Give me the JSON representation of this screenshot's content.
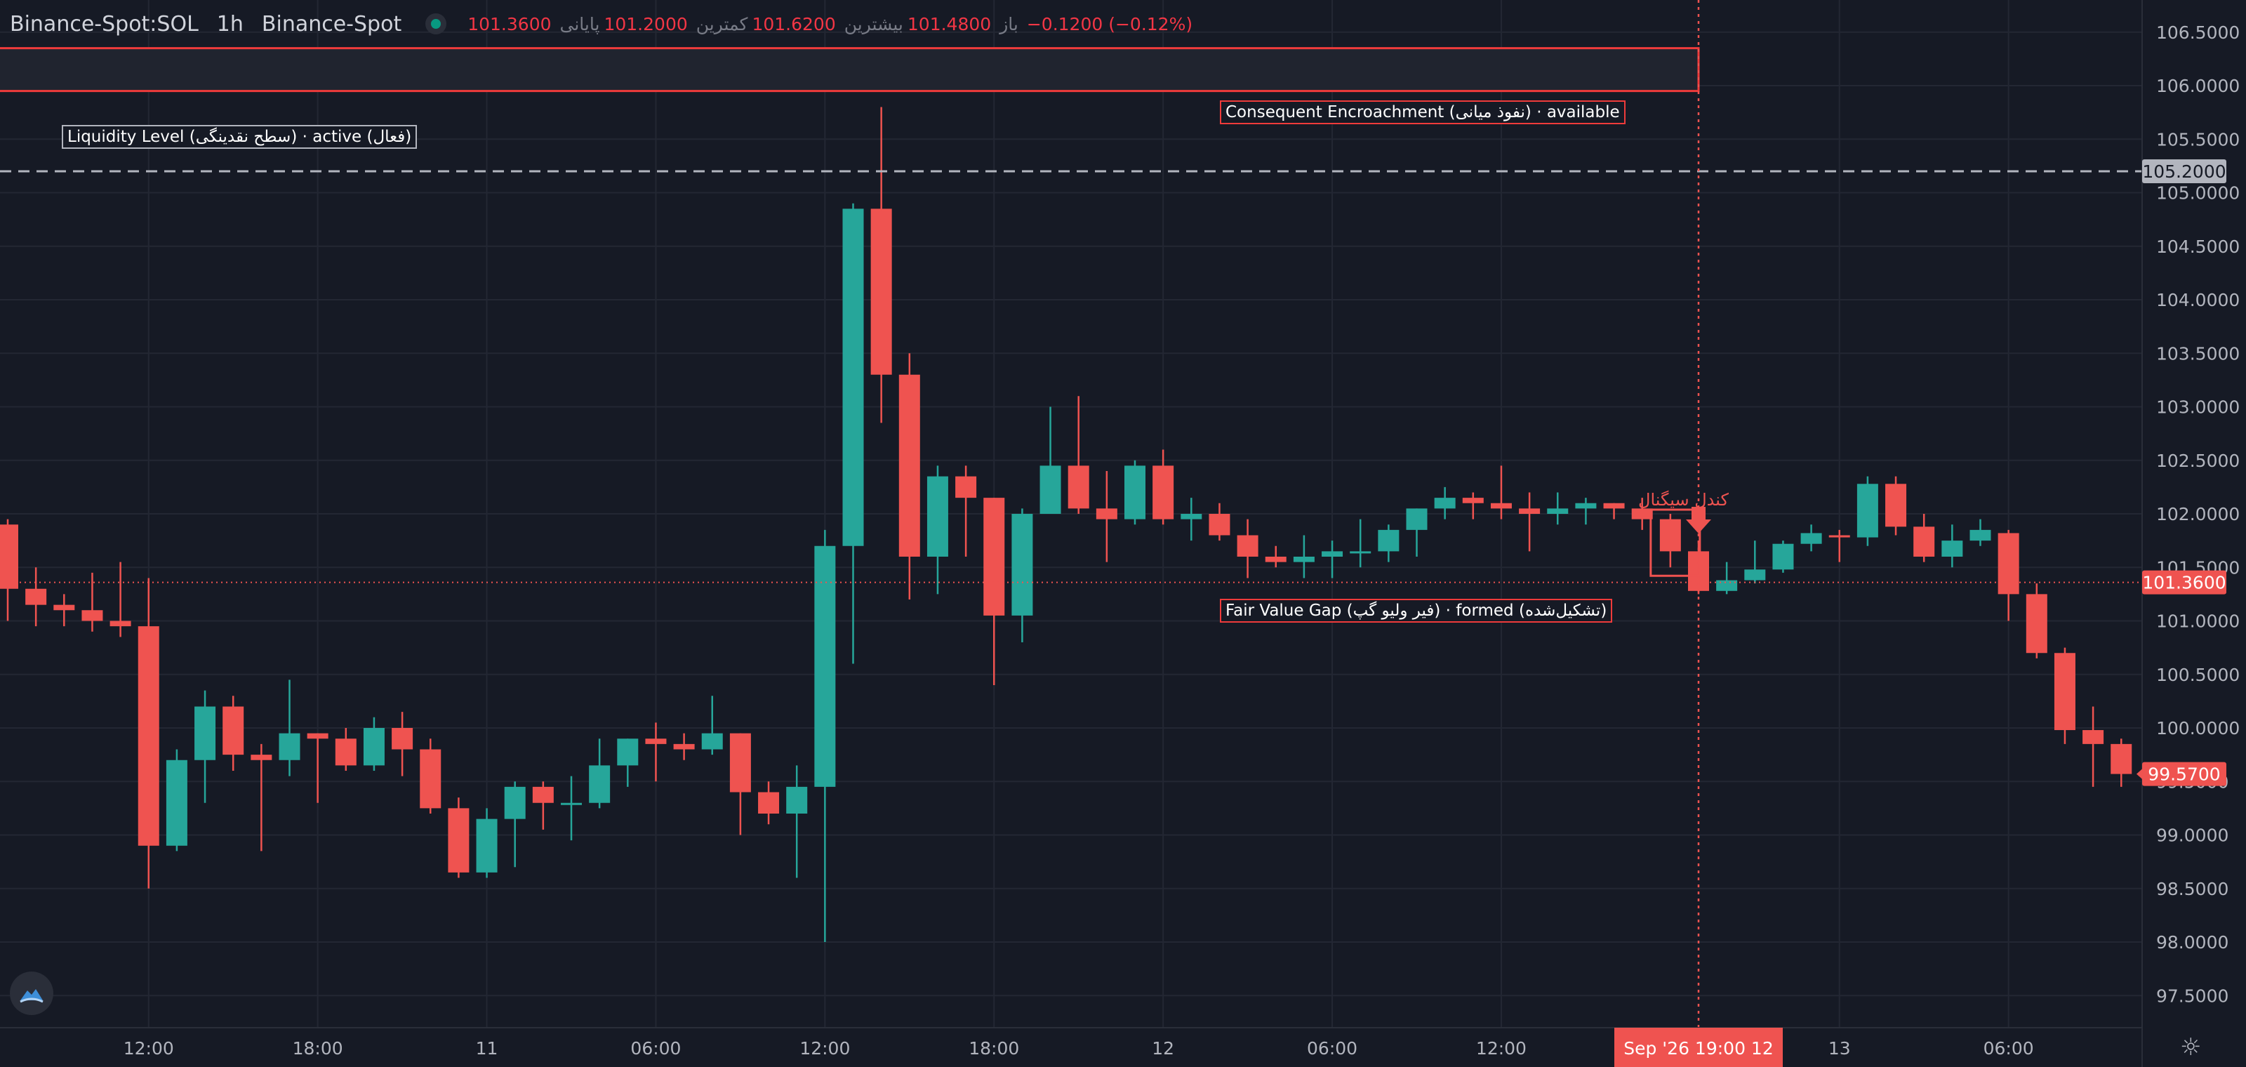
{
  "header": {
    "symbol": "Binance-Spot:SOL",
    "timeframe": "1h",
    "exchange": "Binance-Spot",
    "open_label": "باز",
    "open_value": "101.4800",
    "high_label": "بیشترین",
    "high_value": "101.6200",
    "low_label": "کمترین",
    "low_value": "101.2000",
    "close_label": "پایانی",
    "close_value": "101.3600",
    "change_text": "−0.1200 (−0.12%)"
  },
  "annotations": {
    "liquidity_label": "Liquidity Level (سطح نقدینگی) · active (فعال)",
    "ce_label": "Consequent Encroachment (نفوذ میانی) · available",
    "fvg_label": "Fair Value Gap (فیر ولیو گپ) · formed (تشکیل‌شده)",
    "signal_label": "کندل سیگنال"
  },
  "colors": {
    "background": "#161a25",
    "up": "#26a69a",
    "down": "#ef5350",
    "grid": "#232733",
    "text": "#b2b5be"
  },
  "icons": {
    "logo": "cloud-logo-icon",
    "settings": "gear-icon",
    "status": "live-dot-icon",
    "signal": "down-arrow-icon"
  },
  "chart_data": {
    "type": "candlestick",
    "y_axis_side": "right",
    "ylim": [
      97.2,
      106.8
    ],
    "y_ticks": [
      "97.5000",
      "98.0000",
      "98.5000",
      "99.0000",
      "99.5000",
      "100.0000",
      "100.5000",
      "101.0000",
      "101.5000",
      "102.0000",
      "102.5000",
      "103.0000",
      "103.5000",
      "104.0000",
      "104.5000",
      "105.0000",
      "105.5000",
      "106.0000",
      "106.5000"
    ],
    "x_ticks": [
      {
        "i": 5,
        "label": "12:00"
      },
      {
        "i": 11,
        "label": "18:00"
      },
      {
        "i": 17,
        "label": "11"
      },
      {
        "i": 23,
        "label": "06:00"
      },
      {
        "i": 29,
        "label": "12:00"
      },
      {
        "i": 35,
        "label": "18:00"
      },
      {
        "i": 41,
        "label": "12"
      },
      {
        "i": 47,
        "label": "06:00"
      },
      {
        "i": 53,
        "label": "12:00"
      },
      {
        "i": 65,
        "label": "13"
      },
      {
        "i": 71,
        "label": "06:00"
      }
    ],
    "crosshair_index": 60,
    "crosshair_label": "Sep '26   19:00 12",
    "price_badges": [
      {
        "value": "105.2000",
        "price": 105.2,
        "style": "level"
      },
      {
        "value": "101.3600",
        "price": 101.36,
        "style": "current"
      },
      {
        "value": "99.5700",
        "price": 99.57,
        "style": "last"
      }
    ],
    "levels": {
      "liquidity_level": 105.2,
      "current_price": 101.36,
      "zone_top": 106.35,
      "zone_bottom": 105.95
    },
    "ohlc": [
      [
        101.9,
        101.95,
        101.0,
        101.3
      ],
      [
        101.3,
        101.5,
        100.95,
        101.15
      ],
      [
        101.15,
        101.25,
        100.95,
        101.1
      ],
      [
        101.1,
        101.45,
        100.9,
        101.0
      ],
      [
        101.0,
        101.55,
        100.85,
        100.95
      ],
      [
        100.95,
        101.4,
        98.5,
        98.9
      ],
      [
        98.9,
        99.8,
        98.85,
        99.7
      ],
      [
        99.7,
        100.35,
        99.3,
        100.2
      ],
      [
        100.2,
        100.3,
        99.6,
        99.75
      ],
      [
        99.75,
        99.85,
        98.85,
        99.7
      ],
      [
        99.7,
        100.45,
        99.55,
        99.95
      ],
      [
        99.95,
        99.95,
        99.3,
        99.9
      ],
      [
        99.9,
        100.0,
        99.6,
        99.65
      ],
      [
        99.65,
        100.1,
        99.6,
        100.0
      ],
      [
        100.0,
        100.15,
        99.55,
        99.8
      ],
      [
        99.8,
        99.9,
        99.2,
        99.25
      ],
      [
        99.25,
        99.35,
        98.6,
        98.65
      ],
      [
        98.65,
        99.25,
        98.6,
        99.15
      ],
      [
        99.15,
        99.5,
        98.7,
        99.45
      ],
      [
        99.45,
        99.5,
        99.05,
        99.3
      ],
      [
        99.3,
        99.55,
        98.95,
        99.3
      ],
      [
        99.3,
        99.9,
        99.25,
        99.65
      ],
      [
        99.65,
        99.9,
        99.45,
        99.9
      ],
      [
        99.9,
        100.05,
        99.5,
        99.85
      ],
      [
        99.85,
        99.95,
        99.7,
        99.8
      ],
      [
        99.8,
        100.3,
        99.75,
        99.95
      ],
      [
        99.95,
        99.95,
        99.0,
        99.4
      ],
      [
        99.4,
        99.5,
        99.1,
        99.2
      ],
      [
        99.2,
        99.65,
        98.6,
        99.45
      ],
      [
        99.45,
        101.85,
        98.0,
        101.7
      ],
      [
        101.7,
        104.9,
        100.6,
        104.85
      ],
      [
        104.85,
        105.8,
        102.85,
        103.3
      ],
      [
        103.3,
        103.5,
        101.2,
        101.6
      ],
      [
        101.6,
        102.45,
        101.25,
        102.35
      ],
      [
        102.35,
        102.45,
        101.6,
        102.15
      ],
      [
        102.15,
        102.15,
        100.4,
        101.05
      ],
      [
        101.05,
        102.05,
        100.8,
        102.0
      ],
      [
        102.0,
        103.0,
        102.0,
        102.45
      ],
      [
        102.45,
        103.1,
        102.0,
        102.05
      ],
      [
        102.05,
        102.4,
        101.55,
        101.95
      ],
      [
        101.95,
        102.5,
        101.9,
        102.45
      ],
      [
        102.45,
        102.6,
        101.9,
        101.95
      ],
      [
        101.95,
        102.15,
        101.75,
        102.0
      ],
      [
        102.0,
        102.1,
        101.75,
        101.8
      ],
      [
        101.8,
        101.95,
        101.4,
        101.6
      ],
      [
        101.6,
        101.7,
        101.5,
        101.55
      ],
      [
        101.55,
        101.8,
        101.4,
        101.6
      ],
      [
        101.6,
        101.75,
        101.4,
        101.65
      ],
      [
        101.65,
        101.95,
        101.5,
        101.65
      ],
      [
        101.65,
        101.9,
        101.55,
        101.85
      ],
      [
        101.85,
        102.05,
        101.6,
        102.05
      ],
      [
        102.05,
        102.25,
        101.95,
        102.15
      ],
      [
        102.15,
        102.2,
        101.95,
        102.1
      ],
      [
        102.1,
        102.45,
        101.95,
        102.05
      ],
      [
        102.05,
        102.2,
        101.65,
        102.0
      ],
      [
        102.0,
        102.2,
        101.9,
        102.05
      ],
      [
        102.05,
        102.15,
        101.9,
        102.1
      ],
      [
        102.1,
        102.1,
        101.95,
        102.05
      ],
      [
        102.05,
        102.15,
        101.85,
        101.95
      ],
      [
        101.95,
        102.0,
        101.5,
        101.65
      ],
      [
        101.65,
        101.75,
        101.25,
        101.28
      ],
      [
        101.28,
        101.55,
        101.25,
        101.38
      ],
      [
        101.38,
        101.75,
        101.35,
        101.48
      ],
      [
        101.48,
        101.75,
        101.45,
        101.72
      ],
      [
        101.72,
        101.9,
        101.65,
        101.82
      ],
      [
        101.8,
        101.85,
        101.55,
        101.78
      ],
      [
        101.78,
        102.35,
        101.7,
        102.28
      ],
      [
        102.28,
        102.35,
        101.8,
        101.88
      ],
      [
        101.88,
        102.0,
        101.55,
        101.6
      ],
      [
        101.6,
        101.9,
        101.5,
        101.75
      ],
      [
        101.75,
        101.95,
        101.7,
        101.85
      ],
      [
        101.82,
        101.85,
        101.0,
        101.25
      ],
      [
        101.25,
        101.35,
        100.65,
        100.7
      ],
      [
        100.7,
        100.75,
        99.85,
        99.98
      ],
      [
        99.98,
        100.2,
        99.45,
        99.85
      ],
      [
        99.85,
        99.9,
        99.45,
        99.57
      ]
    ]
  }
}
